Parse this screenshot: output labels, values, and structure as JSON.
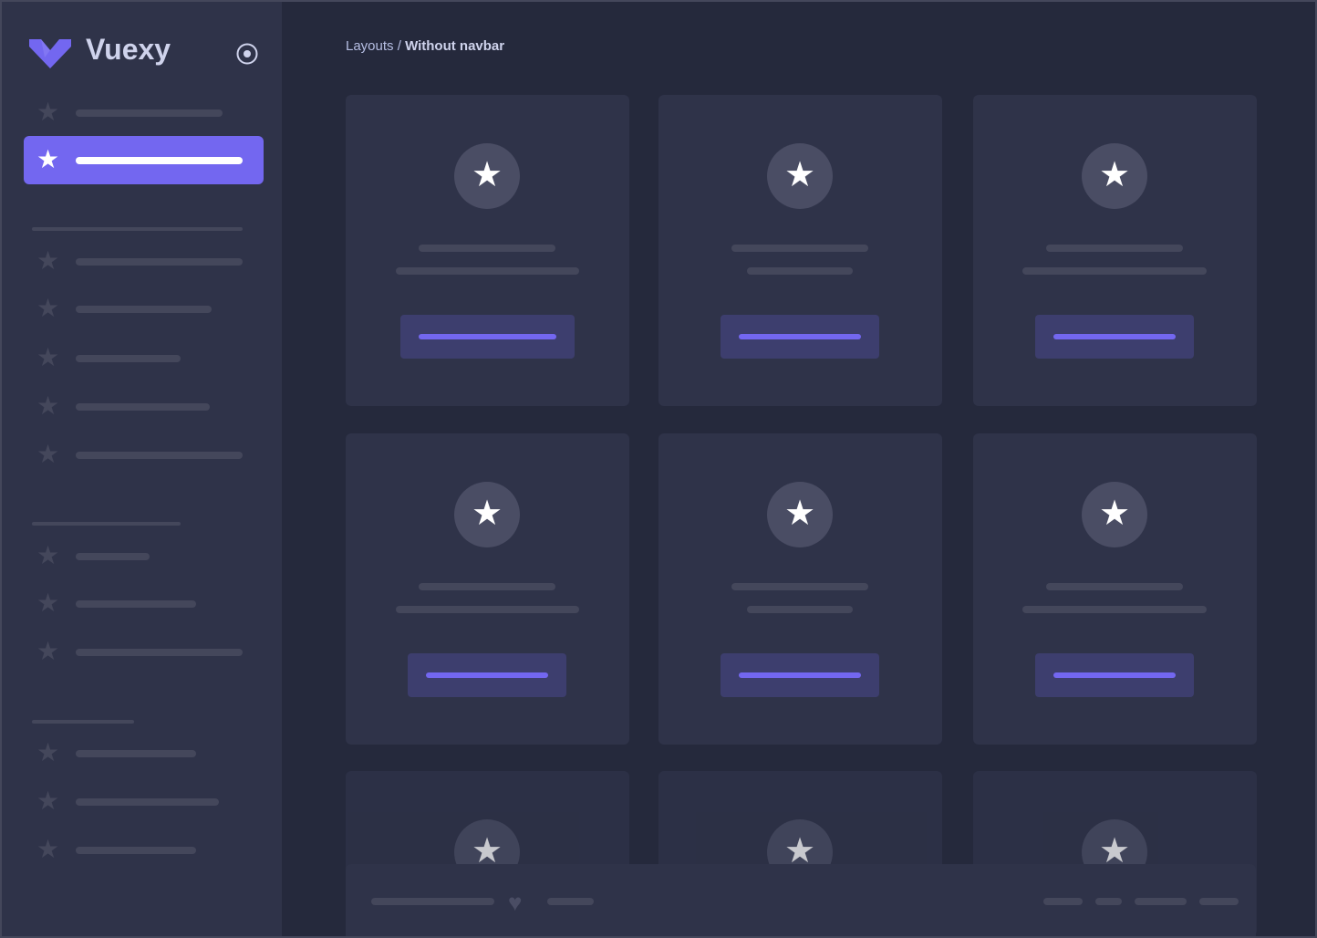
{
  "brand": {
    "name": "Vuexy",
    "accent": "#7367f0"
  },
  "breadcrumb": {
    "parent": "Layouts",
    "separator": " / ",
    "current": "Without navbar"
  },
  "icons": {
    "menu_item": "star-icon",
    "toggle": "radio-circle-icon",
    "card": "star-icon",
    "footer": "heart-icon"
  }
}
